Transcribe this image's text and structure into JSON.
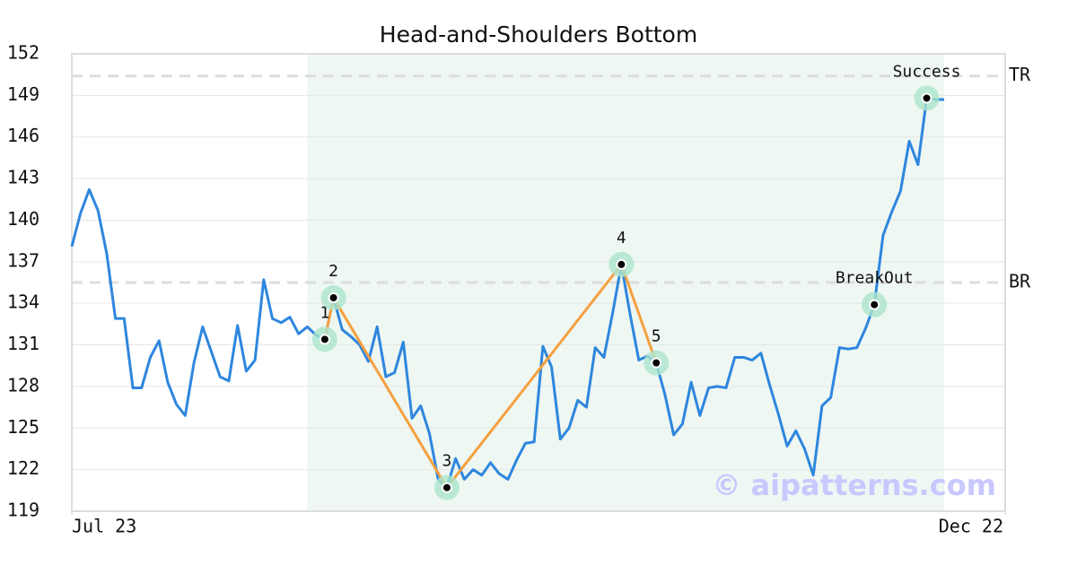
{
  "chart_data": {
    "type": "line",
    "title": "Head-and-Shoulders Bottom",
    "series": [
      {
        "color": "#2e86de",
        "values": [
          138.1,
          140.5,
          142.2,
          140.7,
          137.6,
          132.9,
          132.9,
          127.9,
          127.9,
          130.1,
          131.3,
          128.3,
          126.7,
          125.9,
          129.7,
          132.3,
          130.5,
          128.7,
          128.4,
          132.4,
          129.1,
          129.9,
          135.7,
          132.9,
          132.6,
          133.0,
          131.8,
          132.3,
          131.7,
          131.4,
          134.4,
          132.1,
          131.6,
          131.0,
          129.8,
          132.3,
          128.7,
          129.0,
          131.2,
          125.7,
          126.6,
          124.6,
          121.3,
          120.7,
          122.8,
          121.3,
          122.0,
          121.6,
          122.5,
          121.7,
          121.3,
          122.7,
          123.9,
          124.0,
          130.9,
          129.4,
          124.2,
          125.0,
          127.0,
          126.5,
          130.8,
          130.1,
          133.3,
          136.8,
          133.2,
          129.9,
          130.2,
          129.7,
          127.4,
          124.5,
          125.3,
          128.3,
          125.9,
          127.9,
          128.0,
          127.9,
          130.1,
          130.1,
          129.9,
          130.4,
          128.1,
          126.0,
          123.7,
          124.8,
          123.5,
          121.6,
          126.6,
          127.2,
          130.8,
          130.7,
          130.8,
          132.2,
          133.9,
          138.9,
          140.6,
          142.1,
          145.7,
          144.0,
          148.8,
          148.7,
          148.7
        ]
      }
    ],
    "xlim": [
      0,
      107
    ],
    "xticks": [
      {
        "value": 0,
        "label": "Jul 23"
      },
      {
        "value": 107,
        "label": "Dec 22"
      }
    ],
    "ylim": [
      119,
      152
    ],
    "yticks": [
      119,
      122,
      125,
      128,
      131,
      134,
      137,
      140,
      143,
      146,
      149,
      152
    ],
    "grid": true,
    "highlight_x": [
      27,
      100
    ],
    "pattern_color": "#f5a040",
    "pattern": [
      {
        "label": "1",
        "x": 29,
        "y": 131.4
      },
      {
        "label": "2",
        "x": 30,
        "y": 134.4
      },
      {
        "label": "3",
        "x": 43,
        "y": 120.7
      },
      {
        "label": "4",
        "x": 63,
        "y": 136.8
      },
      {
        "label": "5",
        "x": 67,
        "y": 129.7
      }
    ],
    "markers": [
      {
        "label": "BreakOut",
        "x": 92,
        "y": 133.9
      },
      {
        "label": "Success",
        "x": 98,
        "y": 148.8
      }
    ],
    "levels": [
      {
        "label": "TR",
        "value": 150.4
      },
      {
        "label": "BR",
        "value": 135.5
      }
    ],
    "watermark": "© aipatterns.com"
  }
}
